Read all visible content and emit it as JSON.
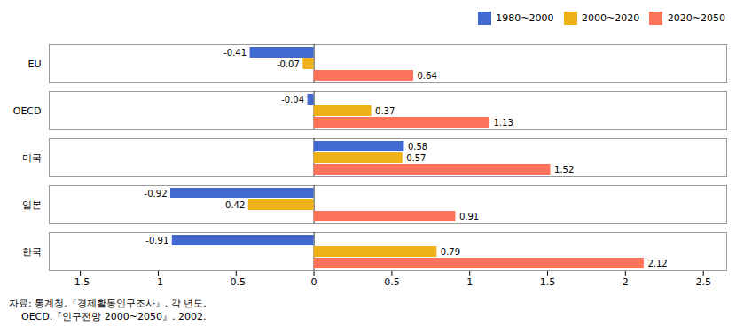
{
  "chart_data": {
    "type": "bar",
    "orientation": "horizontal",
    "categories": [
      "EU",
      "OECD",
      "미국",
      "일본",
      "한국"
    ],
    "series": [
      {
        "name": "1980~2000",
        "values": [
          -0.41,
          -0.04,
          0.58,
          -0.92,
          -0.91
        ]
      },
      {
        "name": "2000~2020",
        "values": [
          -0.07,
          0.37,
          0.57,
          -0.42,
          0.79
        ]
      },
      {
        "name": "2020~2050",
        "values": [
          0.64,
          1.13,
          1.52,
          0.91,
          2.12
        ]
      }
    ],
    "xlim": [
      -1.7,
      2.65
    ],
    "xticks": [
      -1.5,
      -1.0,
      -0.5,
      0.0,
      0.5,
      1.0,
      1.5,
      2.0,
      2.5
    ],
    "data_labels": true,
    "grid": false,
    "legend": "upper right",
    "annotations": [
      "자료: 통계청.『경제활동인구조사』. 각 년도.",
      "    OECD.『인구전망 2000~2050』. 2002."
    ]
  }
}
